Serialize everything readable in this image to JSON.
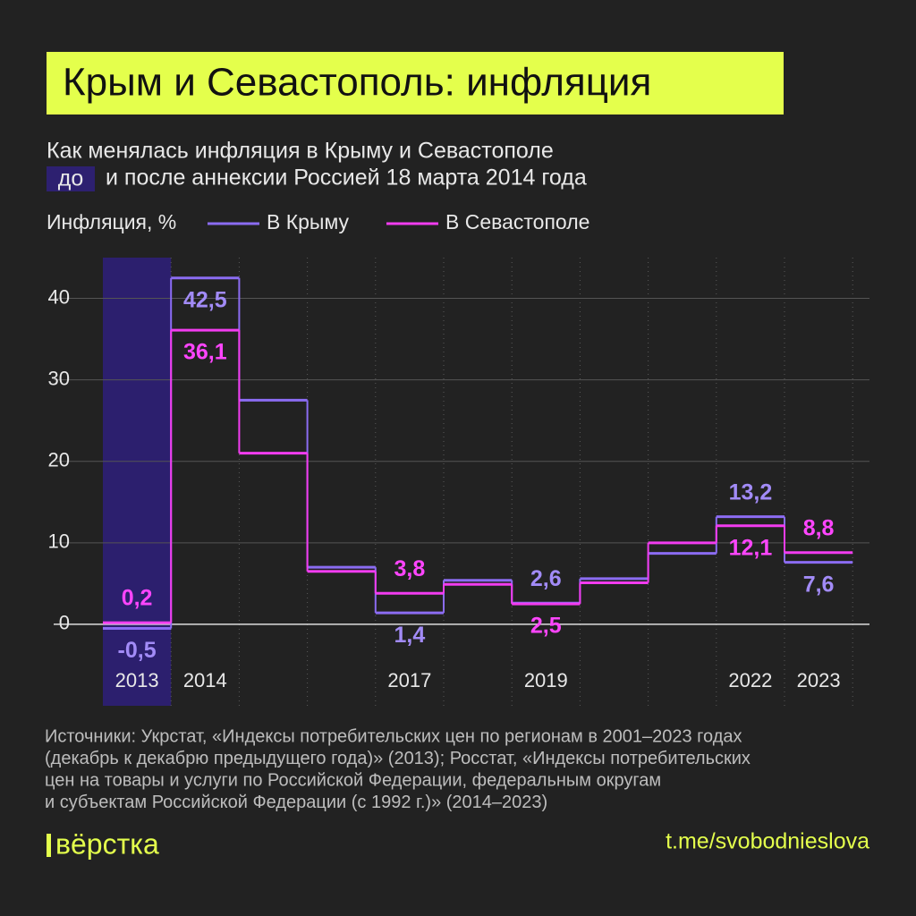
{
  "chart_data": {
    "type": "step",
    "title": "Крым и Севастополь: инфляция",
    "subtitle": "Как менялась инфляция в Крыму и Севастополе",
    "subtitle_highlight": "до",
    "subtitle_rest": "и после аннексии Россией 18 марта 2014 года",
    "ylabel": "Инфляция, %",
    "categories": [
      "2013",
      "2014",
      null,
      null,
      "2017",
      null,
      "2019",
      null,
      null,
      "2022",
      "2023"
    ],
    "highlight": "2013",
    "series": [
      {
        "name": "В Крыму",
        "color": "#8b6cf2",
        "values": [
          -0.5,
          42.5,
          27.5,
          7.0,
          1.4,
          5.4,
          2.6,
          5.6,
          8.7,
          13.2,
          7.6
        ],
        "value_labels": [
          "-0,5",
          "42,5",
          null,
          null,
          "1,4",
          null,
          "2,6",
          null,
          null,
          "13,2",
          "7,6"
        ]
      },
      {
        "name": "В Севастополе",
        "color": "#f23cf0",
        "values": [
          0.2,
          36.1,
          21.0,
          6.5,
          3.8,
          4.9,
          2.5,
          5.1,
          10.0,
          12.1,
          8.8
        ],
        "value_labels": [
          "0,2",
          "36,1",
          null,
          null,
          "3,8",
          null,
          "2,5",
          null,
          null,
          "12,1",
          "8,8"
        ]
      }
    ],
    "ylim": [
      -10,
      45
    ],
    "yticks": [
      0,
      10,
      20,
      30,
      40
    ],
    "grid": true,
    "source": [
      "Источники: Укрстат, «Индексы потребительских цен по регионам в 2001–2023 годах",
      "(декабрь к декабрю предыдущего года)» (2013); Росстат, «Индексы потребительских",
      "цен на товары и услуги по Российской Федерации, федеральным округам",
      "и субъектам Российской Федерации (с 1992 г.)» (2014–2023)"
    ],
    "logo": "вёрстка",
    "link": "t.me/svobodnieslova"
  }
}
